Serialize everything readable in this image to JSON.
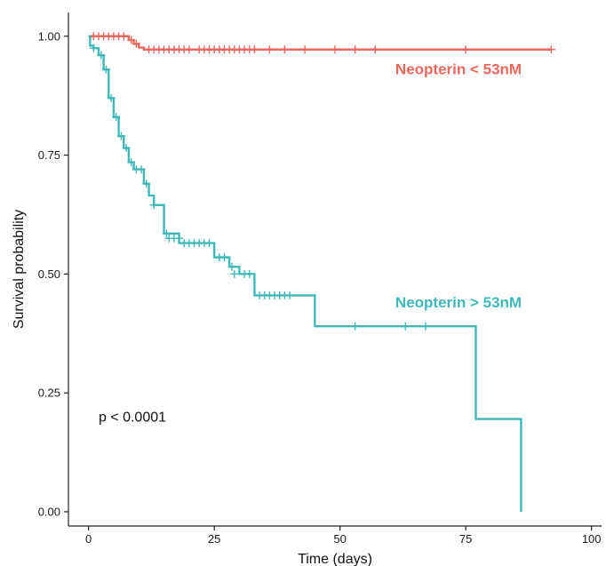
{
  "chart_data": {
    "type": "line",
    "subtype": "kaplan-meier step survival curve",
    "title": "",
    "xlabel": "Time (days)",
    "ylabel": "Survival probability",
    "xlim": [
      -4,
      102
    ],
    "ylim": [
      -0.03,
      1.05
    ],
    "x_ticks": [
      0,
      25,
      50,
      75,
      100
    ],
    "y_ticks": [
      0.0,
      0.25,
      0.5,
      0.75,
      1.0
    ],
    "x_tick_labels": [
      "0",
      "25",
      "50",
      "75",
      "100"
    ],
    "y_tick_labels": [
      "0.00",
      "0.25",
      "0.50",
      "0.75",
      "1.00"
    ],
    "grid": false,
    "legend": "none",
    "annotations": [
      {
        "text": "p < 0.0001",
        "x": 2,
        "y": 0.19
      }
    ],
    "series": [
      {
        "name": "Neopterin < 53nM",
        "color": "#E8685E",
        "label_anchor": {
          "x": 61,
          "y": 0.92
        },
        "steps": [
          [
            0,
            1.0
          ],
          [
            8,
            0.992
          ],
          [
            9,
            0.984
          ],
          [
            10,
            0.976
          ],
          [
            11,
            0.972
          ]
        ],
        "end_x": 92,
        "censor_points": [
          [
            1,
            1.0
          ],
          [
            2,
            1.0
          ],
          [
            3,
            1.0
          ],
          [
            4,
            1.0
          ],
          [
            5,
            1.0
          ],
          [
            6,
            1.0
          ],
          [
            7,
            1.0
          ],
          [
            8.5,
            0.992
          ],
          [
            9.5,
            0.984
          ],
          [
            12,
            0.972
          ],
          [
            13,
            0.972
          ],
          [
            14,
            0.972
          ],
          [
            15,
            0.972
          ],
          [
            16,
            0.972
          ],
          [
            17,
            0.972
          ],
          [
            18,
            0.972
          ],
          [
            19,
            0.972
          ],
          [
            20,
            0.972
          ],
          [
            22,
            0.972
          ],
          [
            23,
            0.972
          ],
          [
            24,
            0.972
          ],
          [
            25,
            0.972
          ],
          [
            26,
            0.972
          ],
          [
            27,
            0.972
          ],
          [
            28,
            0.972
          ],
          [
            29,
            0.972
          ],
          [
            30,
            0.972
          ],
          [
            31,
            0.972
          ],
          [
            32,
            0.972
          ],
          [
            33,
            0.972
          ],
          [
            36,
            0.972
          ],
          [
            39,
            0.972
          ],
          [
            43,
            0.972
          ],
          [
            49,
            0.972
          ],
          [
            53,
            0.972
          ],
          [
            57,
            0.972
          ],
          [
            75,
            0.972
          ],
          [
            92,
            0.972
          ]
        ]
      },
      {
        "name": "Neopterin > 53nM",
        "color": "#3FB8B9",
        "label_anchor": {
          "x": 61,
          "y": 0.43
        },
        "steps": [
          [
            0,
            1.0
          ],
          [
            0.3,
            0.98
          ],
          [
            1,
            0.975
          ],
          [
            2,
            0.96
          ],
          [
            3,
            0.93
          ],
          [
            4,
            0.87
          ],
          [
            5,
            0.83
          ],
          [
            6,
            0.79
          ],
          [
            7,
            0.765
          ],
          [
            8,
            0.735
          ],
          [
            9,
            0.72
          ],
          [
            11,
            0.69
          ],
          [
            12,
            0.665
          ],
          [
            13,
            0.645
          ],
          [
            15,
            0.585
          ],
          [
            18,
            0.565
          ],
          [
            25,
            0.535
          ],
          [
            28,
            0.515
          ],
          [
            30,
            0.5
          ],
          [
            33,
            0.455
          ],
          [
            45,
            0.39
          ],
          [
            77,
            0.195
          ],
          [
            86,
            0.0
          ]
        ],
        "end_x": 86,
        "censor_points": [
          [
            1,
            0.975
          ],
          [
            2.5,
            0.96
          ],
          [
            3.5,
            0.93
          ],
          [
            4.5,
            0.87
          ],
          [
            5.5,
            0.83
          ],
          [
            6.5,
            0.79
          ],
          [
            7.5,
            0.765
          ],
          [
            8.5,
            0.735
          ],
          [
            9.5,
            0.72
          ],
          [
            10.5,
            0.72
          ],
          [
            11.5,
            0.69
          ],
          [
            13,
            0.645
          ],
          [
            15.5,
            0.585
          ],
          [
            16,
            0.575
          ],
          [
            17,
            0.575
          ],
          [
            18,
            0.575
          ],
          [
            19,
            0.565
          ],
          [
            20,
            0.565
          ],
          [
            21,
            0.565
          ],
          [
            22,
            0.565
          ],
          [
            23,
            0.565
          ],
          [
            24,
            0.565
          ],
          [
            26,
            0.535
          ],
          [
            27,
            0.535
          ],
          [
            28.5,
            0.515
          ],
          [
            29,
            0.5
          ],
          [
            31,
            0.5
          ],
          [
            32,
            0.5
          ],
          [
            34,
            0.455
          ],
          [
            35,
            0.455
          ],
          [
            36,
            0.455
          ],
          [
            37,
            0.455
          ],
          [
            38,
            0.455
          ],
          [
            39,
            0.455
          ],
          [
            40,
            0.455
          ],
          [
            53,
            0.39
          ],
          [
            63,
            0.39
          ],
          [
            67,
            0.39
          ]
        ]
      }
    ]
  }
}
